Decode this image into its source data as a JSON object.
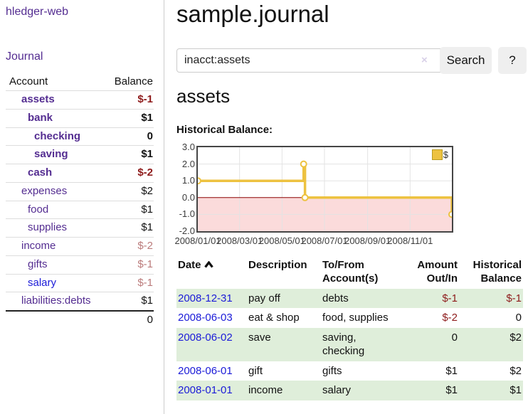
{
  "app": {
    "title": "hledger-web",
    "nav_journal": "Journal"
  },
  "sidebar": {
    "header": {
      "account": "Account",
      "balance": "Balance"
    },
    "rows": [
      {
        "name": "assets",
        "balance": "$-1",
        "indent": 1,
        "bold": true,
        "link": "purple",
        "balance_class": "neg-strong"
      },
      {
        "name": "bank",
        "balance": "$1",
        "indent": 2,
        "bold": true,
        "link": "purple",
        "balance_class": ""
      },
      {
        "name": "checking",
        "balance": "0",
        "indent": 3,
        "bold": true,
        "link": "purple",
        "balance_class": ""
      },
      {
        "name": "saving",
        "balance": "$1",
        "indent": 3,
        "bold": true,
        "link": "purple",
        "balance_class": ""
      },
      {
        "name": "cash",
        "balance": "$-2",
        "indent": 2,
        "bold": true,
        "link": "purple",
        "balance_class": "neg-strong"
      },
      {
        "name": "expenses",
        "balance": "$2",
        "indent": 1,
        "bold": false,
        "link": "purple",
        "balance_class": ""
      },
      {
        "name": "food",
        "balance": "$1",
        "indent": 2,
        "bold": false,
        "link": "purple",
        "balance_class": ""
      },
      {
        "name": "supplies",
        "balance": "$1",
        "indent": 2,
        "bold": false,
        "link": "purple",
        "balance_class": ""
      },
      {
        "name": "income",
        "balance": "$-2",
        "indent": 1,
        "bold": false,
        "link": "purple",
        "balance_class": "neg-muted"
      },
      {
        "name": "gifts",
        "balance": "$-1",
        "indent": 2,
        "bold": false,
        "link": "purple",
        "balance_class": "neg-muted"
      },
      {
        "name": "salary",
        "balance": "$-1",
        "indent": 2,
        "bold": false,
        "link": "blue",
        "balance_class": "neg-muted"
      },
      {
        "name": "liabilities:debts",
        "balance": "$1",
        "indent": 1,
        "bold": false,
        "link": "purple",
        "balance_class": ""
      }
    ],
    "total": "0"
  },
  "main": {
    "title": "sample.journal",
    "search": {
      "query": "inacct:assets",
      "clear_icon": "×",
      "button": "Search",
      "help_button": "?"
    },
    "account_heading": "assets",
    "chart_label": "Historical Balance:"
  },
  "chart_data": {
    "type": "line",
    "title": "Historical Balance:",
    "line_style": "step",
    "series_label": "$",
    "points": [
      [
        "2008-01-01",
        1
      ],
      [
        "2008-06-01",
        2
      ],
      [
        "2008-06-03",
        0
      ],
      [
        "2008-12-31",
        -1
      ]
    ],
    "x_range": [
      "2008-01-01",
      "2008-12-31"
    ],
    "ylim": [
      -2,
      3
    ],
    "y_ticks": [
      3.0,
      2.0,
      1.0,
      0.0,
      -1.0,
      -2.0
    ],
    "x_ticks": [
      "2008/01/01",
      "2008/03/01",
      "2008/05/01",
      "2008/07/01",
      "2008/09/01",
      "2008/11/01"
    ],
    "grid": true,
    "legend_position": "top-right",
    "series_color": "#edc240",
    "negative_region_color": "#fbdbdb",
    "zero_line_color": "#8b0000"
  },
  "register": {
    "headers": {
      "date": "Date",
      "description": "Description",
      "accounts": "To/From Account(s)",
      "amount": "Amount Out/In",
      "balance": "Historical Balance"
    },
    "rows": [
      {
        "date": "2008-12-31",
        "description": "pay off",
        "accounts": "debts",
        "amount": "$-1",
        "balance": "$-1"
      },
      {
        "date": "2008-06-03",
        "description": "eat & shop",
        "accounts": "food, supplies",
        "amount": "$-2",
        "balance": "0"
      },
      {
        "date": "2008-06-02",
        "description": "save",
        "accounts": "saving, checking",
        "amount": "0",
        "balance": "$2"
      },
      {
        "date": "2008-06-01",
        "description": "gift",
        "accounts": "gifts",
        "amount": "$1",
        "balance": "$2"
      },
      {
        "date": "2008-01-01",
        "description": "income",
        "accounts": "salary",
        "amount": "$1",
        "balance": "$1"
      }
    ]
  },
  "colors": {
    "link_purple": "#542d91",
    "link_blue": "#1b1bd8",
    "negative_strong": "#8e1b1b",
    "negative_muted": "#bb7b7b",
    "row_stripe_green": "#dfeeda",
    "chart_series_gold": "#edc240",
    "chart_negative_pink": "#fbdbdb",
    "chart_zero_line_red": "#8b0000",
    "button_gray": "#efefef"
  }
}
